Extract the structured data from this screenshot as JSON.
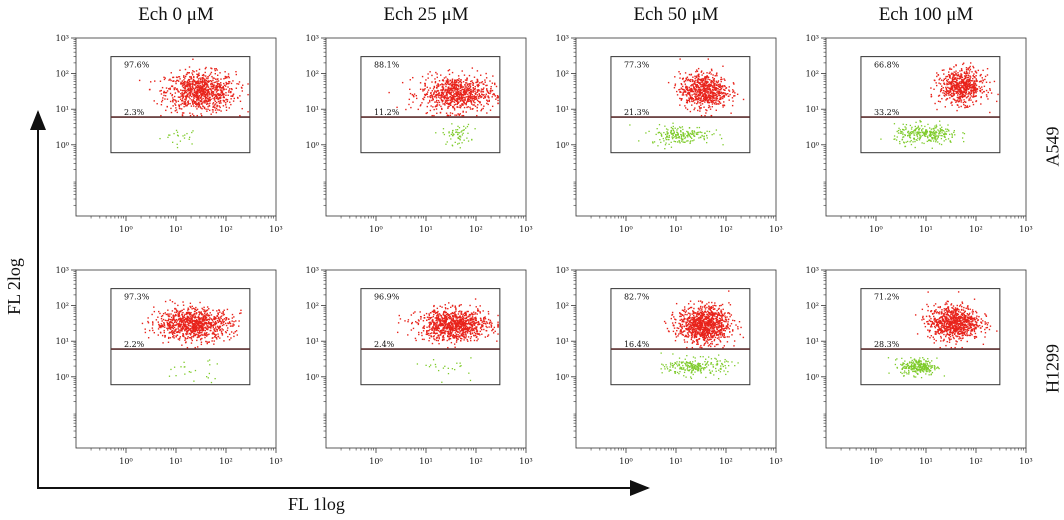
{
  "colors": {
    "positive": "#e8231b",
    "negative": "#7ecb2a",
    "gate_line": "#5a2d2d",
    "frame": "#333333"
  },
  "labels": {
    "x_axis": "FL 1log",
    "y_axis": "FL 2log",
    "rows": [
      "A549",
      "H1299"
    ],
    "columns": [
      "Ech 0 μM",
      "Ech 25 μM",
      "Ech 50 μM",
      "Ech 100 μM"
    ]
  },
  "chart_data": {
    "type": "scatter",
    "x_log_scale": true,
    "y_log_scale": true,
    "xlim": [
      0.1,
      1000
    ],
    "ylim": [
      0.01,
      1000
    ],
    "x_ticks": [
      "10⁰",
      "10¹",
      "10²",
      "10³"
    ],
    "y_ticks": [
      "10⁰",
      "10¹",
      "10²",
      "10³"
    ],
    "gate_threshold_y": 6,
    "gate_x_range": [
      0.5,
      300
    ],
    "gate_y_range": [
      0.6,
      300
    ],
    "grid": false,
    "panels": [
      {
        "row": "A549",
        "column": "Ech 0 μM",
        "upper_pct": "97.6%",
        "lower_pct": "2.3%",
        "upper_n": 900,
        "lower_n": 22,
        "upper_center": [
          30,
          32
        ],
        "upper_spread": [
          0.35,
          0.28
        ],
        "lower_center": [
          12,
          1.8
        ],
        "lower_spread": [
          0.2,
          0.12
        ]
      },
      {
        "row": "A549",
        "column": "Ech 25 μM",
        "upper_pct": "88.1%",
        "lower_pct": "11.2%",
        "upper_n": 800,
        "lower_n": 60,
        "upper_center": [
          40,
          28
        ],
        "upper_spread": [
          0.36,
          0.25
        ],
        "lower_center": [
          40,
          2
        ],
        "lower_spread": [
          0.14,
          0.14
        ]
      },
      {
        "row": "A549",
        "column": "Ech 50 μM",
        "upper_pct": "77.3%",
        "lower_pct": "21.3%",
        "upper_n": 700,
        "lower_n": 200,
        "upper_center": [
          35,
          35
        ],
        "upper_spread": [
          0.24,
          0.25
        ],
        "lower_center": [
          12,
          2
        ],
        "lower_spread": [
          0.3,
          0.13
        ]
      },
      {
        "row": "A549",
        "column": "Ech 100 μM",
        "upper_pct": "66.8%",
        "lower_pct": "33.2%",
        "upper_n": 650,
        "lower_n": 280,
        "upper_center": [
          50,
          45
        ],
        "upper_spread": [
          0.22,
          0.24
        ],
        "lower_center": [
          10,
          2
        ],
        "lower_spread": [
          0.32,
          0.14
        ]
      },
      {
        "row": "H1299",
        "column": "Ech 0 μM",
        "upper_pct": "97.3%",
        "lower_pct": "2.2%",
        "upper_n": 950,
        "lower_n": 22,
        "upper_center": [
          22,
          32
        ],
        "upper_spread": [
          0.38,
          0.22
        ],
        "lower_center": [
          20,
          1.5
        ],
        "lower_spread": [
          0.35,
          0.16
        ]
      },
      {
        "row": "H1299",
        "column": "Ech 25 μM",
        "upper_pct": "96.9%",
        "lower_pct": "2.4%",
        "upper_n": 950,
        "lower_n": 22,
        "upper_center": [
          35,
          30
        ],
        "upper_spread": [
          0.36,
          0.22
        ],
        "lower_center": [
          30,
          1.8
        ],
        "lower_spread": [
          0.22,
          0.14
        ]
      },
      {
        "row": "H1299",
        "column": "Ech 50 μM",
        "upper_pct": "82.7%",
        "lower_pct": "16.4%",
        "upper_n": 1000,
        "lower_n": 230,
        "upper_center": [
          35,
          30
        ],
        "upper_spread": [
          0.26,
          0.26
        ],
        "lower_center": [
          25,
          2
        ],
        "lower_spread": [
          0.3,
          0.12
        ]
      },
      {
        "row": "H1299",
        "column": "Ech 100 μM",
        "upper_pct": "71.2%",
        "lower_pct": "28.3%",
        "upper_n": 850,
        "lower_n": 260,
        "upper_center": [
          35,
          35
        ],
        "upper_spread": [
          0.26,
          0.24
        ],
        "lower_center": [
          7,
          2
        ],
        "lower_spread": [
          0.18,
          0.12
        ]
      }
    ]
  }
}
